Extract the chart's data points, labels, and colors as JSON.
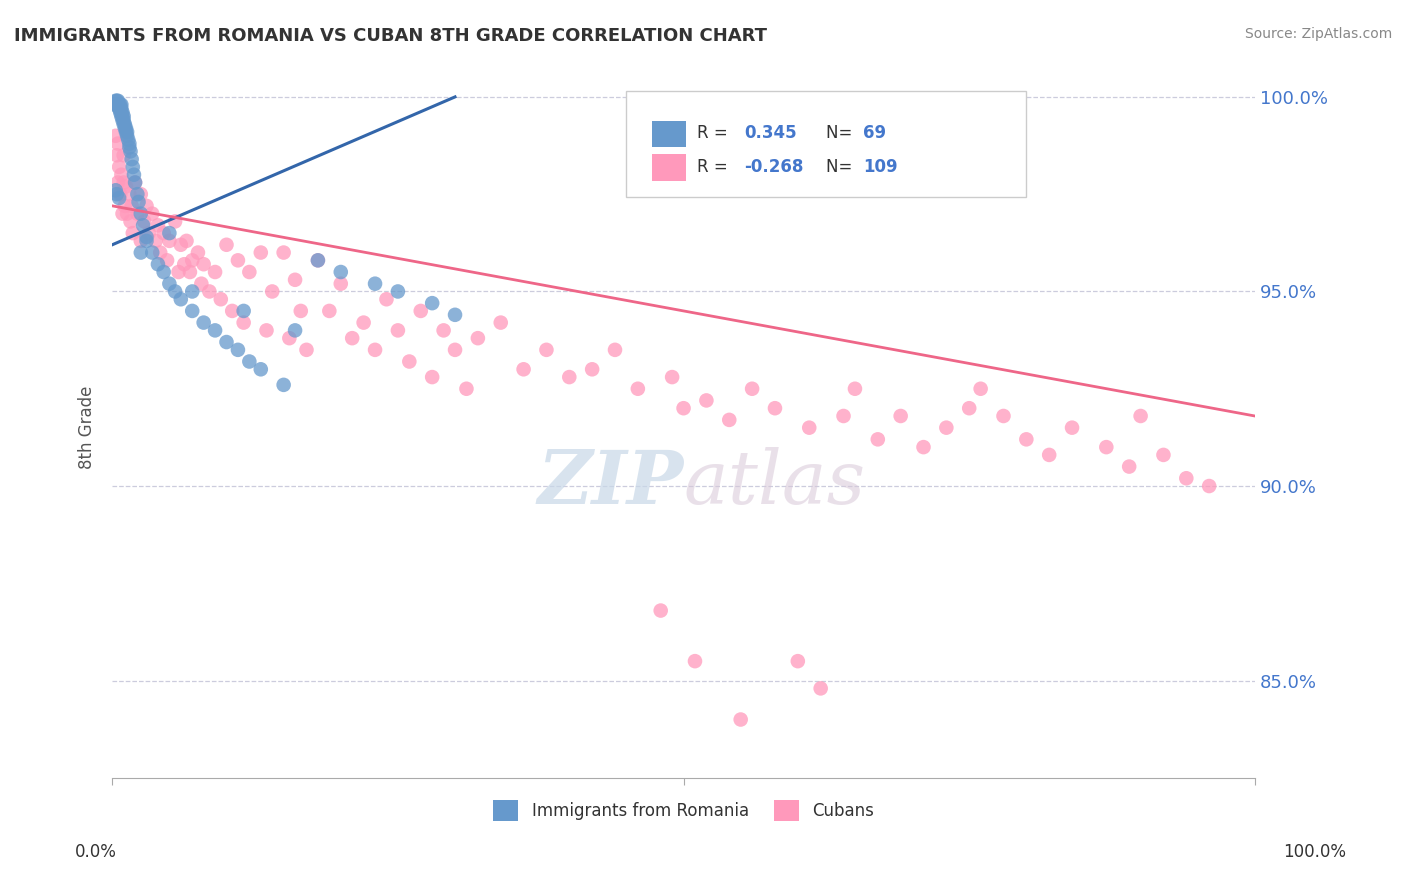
{
  "title": "IMMIGRANTS FROM ROMANIA VS CUBAN 8TH GRADE CORRELATION CHART",
  "source": "Source: ZipAtlas.com",
  "ylabel": "8th Grade",
  "legend_romania": "Immigrants from Romania",
  "legend_cubans": "Cubans",
  "R_romania": 0.345,
  "N_romania": 69,
  "R_cubans": -0.268,
  "N_cubans": 109,
  "romania_color": "#6699CC",
  "cubans_color": "#FF99BB",
  "romania_line_color": "#3366AA",
  "cubans_line_color": "#EE6688",
  "watermark_zip": "ZIP",
  "watermark_atlas": "atlas",
  "xmin": 0.0,
  "xmax": 1.0,
  "ymin": 0.825,
  "ymax": 1.005,
  "yticks": [
    0.85,
    0.9,
    0.95,
    1.0
  ],
  "ytick_labels": [
    "85.0%",
    "90.0%",
    "95.0%",
    "100.0%"
  ],
  "romania_scatter_x": [
    0.002,
    0.003,
    0.004,
    0.004,
    0.005,
    0.005,
    0.006,
    0.006,
    0.007,
    0.007,
    0.007,
    0.008,
    0.008,
    0.008,
    0.008,
    0.009,
    0.009,
    0.009,
    0.01,
    0.01,
    0.01,
    0.011,
    0.011,
    0.012,
    0.012,
    0.013,
    0.013,
    0.014,
    0.015,
    0.015,
    0.016,
    0.017,
    0.018,
    0.019,
    0.02,
    0.022,
    0.023,
    0.025,
    0.027,
    0.03,
    0.03,
    0.035,
    0.04,
    0.045,
    0.05,
    0.055,
    0.06,
    0.07,
    0.08,
    0.09,
    0.1,
    0.11,
    0.12,
    0.13,
    0.15,
    0.18,
    0.2,
    0.23,
    0.25,
    0.28,
    0.3,
    0.025,
    0.07,
    0.115,
    0.16,
    0.003,
    0.004,
    0.006,
    0.05
  ],
  "romania_scatter_y": [
    0.998,
    0.999,
    0.999,
    0.998,
    0.998,
    0.999,
    0.997,
    0.998,
    0.996,
    0.997,
    0.998,
    0.995,
    0.996,
    0.997,
    0.998,
    0.994,
    0.995,
    0.996,
    0.993,
    0.994,
    0.995,
    0.992,
    0.993,
    0.991,
    0.992,
    0.99,
    0.991,
    0.989,
    0.987,
    0.988,
    0.986,
    0.984,
    0.982,
    0.98,
    0.978,
    0.975,
    0.973,
    0.97,
    0.967,
    0.963,
    0.964,
    0.96,
    0.957,
    0.955,
    0.952,
    0.95,
    0.948,
    0.945,
    0.942,
    0.94,
    0.937,
    0.935,
    0.932,
    0.93,
    0.926,
    0.958,
    0.955,
    0.952,
    0.95,
    0.947,
    0.944,
    0.96,
    0.95,
    0.945,
    0.94,
    0.976,
    0.975,
    0.974,
    0.965
  ],
  "cubans_scatter_x": [
    0.003,
    0.004,
    0.005,
    0.005,
    0.006,
    0.007,
    0.008,
    0.009,
    0.01,
    0.01,
    0.011,
    0.012,
    0.013,
    0.015,
    0.016,
    0.017,
    0.018,
    0.02,
    0.022,
    0.025,
    0.025,
    0.028,
    0.03,
    0.032,
    0.035,
    0.038,
    0.04,
    0.042,
    0.045,
    0.048,
    0.05,
    0.055,
    0.058,
    0.06,
    0.063,
    0.065,
    0.068,
    0.07,
    0.075,
    0.078,
    0.08,
    0.085,
    0.09,
    0.095,
    0.1,
    0.105,
    0.11,
    0.115,
    0.12,
    0.13,
    0.135,
    0.14,
    0.15,
    0.155,
    0.16,
    0.165,
    0.17,
    0.18,
    0.19,
    0.2,
    0.21,
    0.22,
    0.23,
    0.24,
    0.25,
    0.26,
    0.27,
    0.28,
    0.29,
    0.3,
    0.31,
    0.32,
    0.34,
    0.36,
    0.38,
    0.4,
    0.42,
    0.44,
    0.46,
    0.49,
    0.5,
    0.52,
    0.54,
    0.56,
    0.58,
    0.61,
    0.64,
    0.65,
    0.67,
    0.69,
    0.71,
    0.73,
    0.75,
    0.76,
    0.78,
    0.8,
    0.82,
    0.84,
    0.87,
    0.89,
    0.9,
    0.92,
    0.94,
    0.96,
    0.48,
    0.51,
    0.55,
    0.6,
    0.62
  ],
  "cubans_scatter_y": [
    0.99,
    0.985,
    0.988,
    0.978,
    0.982,
    0.975,
    0.98,
    0.97,
    0.985,
    0.978,
    0.972,
    0.977,
    0.97,
    0.975,
    0.968,
    0.972,
    0.965,
    0.978,
    0.97,
    0.975,
    0.963,
    0.968,
    0.972,
    0.965,
    0.97,
    0.963,
    0.967,
    0.96,
    0.965,
    0.958,
    0.963,
    0.968,
    0.955,
    0.962,
    0.957,
    0.963,
    0.955,
    0.958,
    0.96,
    0.952,
    0.957,
    0.95,
    0.955,
    0.948,
    0.962,
    0.945,
    0.958,
    0.942,
    0.955,
    0.96,
    0.94,
    0.95,
    0.96,
    0.938,
    0.953,
    0.945,
    0.935,
    0.958,
    0.945,
    0.952,
    0.938,
    0.942,
    0.935,
    0.948,
    0.94,
    0.932,
    0.945,
    0.928,
    0.94,
    0.935,
    0.925,
    0.938,
    0.942,
    0.93,
    0.935,
    0.928,
    0.93,
    0.935,
    0.925,
    0.928,
    0.92,
    0.922,
    0.917,
    0.925,
    0.92,
    0.915,
    0.918,
    0.925,
    0.912,
    0.918,
    0.91,
    0.915,
    0.92,
    0.925,
    0.918,
    0.912,
    0.908,
    0.915,
    0.91,
    0.905,
    0.918,
    0.908,
    0.902,
    0.9,
    0.868,
    0.855,
    0.84,
    0.855,
    0.848
  ]
}
